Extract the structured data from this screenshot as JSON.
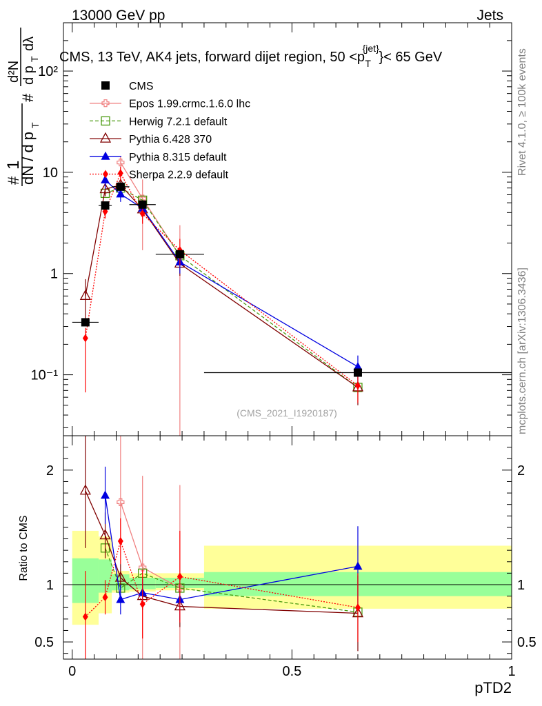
{
  "header": {
    "left": "13000 GeV pp",
    "right": "Jets",
    "title": "CMS, 13 TeV, AK4 jets, forward dijet region, 50 <p",
    "title_sup": "{jet}",
    "title_sub": "T",
    "title_end": "}< 65 GeV",
    "side_top": "Rivet 4.1.0, ≥ 100k events",
    "side_bottom": "mcplots.cern.ch [arXiv:1306.3436]",
    "watermark": "(CMS_2021_I1920187)"
  },
  "chart_data": [
    {
      "type": "scatter",
      "panel": "main",
      "yscale": "log",
      "ylim": [
        0.025,
        300
      ],
      "xlim": [
        -0.02,
        1.0
      ],
      "ylabel": "1/N dN/dp_T dλ  (#  1 / #dN / d p_T  #  d²N / d p_T dλ)",
      "ytick_labels": [
        "10⁻¹",
        "1",
        "10",
        "10²"
      ],
      "ytick_values": [
        0.1,
        1,
        10,
        100
      ],
      "xtick_labels": [
        "0",
        "0.5",
        "1"
      ],
      "xtick_values": [
        0,
        0.5,
        1
      ],
      "legend_position": "top-left",
      "series": [
        {
          "name": "CMS",
          "color": "#000000",
          "marker": "square",
          "line": "none",
          "x": [
            0.03,
            0.075,
            0.11,
            0.16,
            0.245,
            0.65
          ],
          "y": [
            0.33,
            4.7,
            7.2,
            4.8,
            1.55,
            0.105
          ],
          "xerr": [
            0.03,
            0.015,
            0.02,
            0.03,
            0.055,
            0.35
          ]
        },
        {
          "name": "Epos 1.99.crmc.1.6.0 lhc",
          "color": "#f08080",
          "marker": "cross-open",
          "line": "solid",
          "x": [
            0.11,
            0.16,
            0.245
          ],
          "y": [
            12.5,
            5.5,
            1.5
          ],
          "yerr_lo": [
            2.0,
            3.8,
            1.48
          ],
          "yerr_hi": [
            2.0,
            3.0,
            1.5
          ]
        },
        {
          "name": "Herwig 7.2.1 default",
          "color": "#4a9a10",
          "marker": "square-open",
          "line": "dashed",
          "x": [
            0.075,
            0.11,
            0.16,
            0.245,
            0.65
          ],
          "y": [
            6.2,
            7.0,
            5.3,
            1.5,
            0.075
          ]
        },
        {
          "name": "Pythia 6.428 370",
          "color": "#800000",
          "marker": "triangle-open",
          "line": "solid",
          "x": [
            0.03,
            0.075,
            0.11,
            0.16,
            0.245,
            0.65
          ],
          "y": [
            0.6,
            6.8,
            7.5,
            4.3,
            1.25,
            0.075
          ],
          "yerr": [
            0.28,
            1.0,
            1.0,
            0.6,
            0.3,
            0.025
          ]
        },
        {
          "name": "Pythia 8.315 default",
          "color": "#0000e0",
          "marker": "triangle",
          "line": "solid",
          "x": [
            0.075,
            0.11,
            0.16,
            0.245,
            0.65
          ],
          "y": [
            8.4,
            6.1,
            4.4,
            1.3,
            0.12
          ],
          "yerr": [
            1.5,
            1.0,
            0.6,
            0.3,
            0.035
          ]
        },
        {
          "name": "Sherpa 2.2.9 default",
          "color": "#ff0000",
          "marker": "diamond",
          "line": "dotted",
          "x": [
            0.03,
            0.075,
            0.11,
            0.16,
            0.245,
            0.65
          ],
          "y": [
            0.23,
            4.1,
            9.8,
            3.9,
            1.7,
            0.078
          ],
          "yerr_lo": [
            0.163,
            0.6,
            1.5,
            0.8,
            0.5,
            0.025
          ],
          "yerr_hi": [
            0.06,
            0.6,
            1.5,
            0.8,
            0.5,
            0.025
          ]
        }
      ]
    },
    {
      "type": "scatter",
      "panel": "ratio",
      "ylabel": "Ratio to CMS",
      "xlabel": "pTD2",
      "ylim": [
        0.35,
        2.3
      ],
      "xlim": [
        -0.02,
        1.0
      ],
      "ytick_labels": [
        "0.5",
        "1",
        "2"
      ],
      "ytick_values": [
        0.5,
        1,
        2
      ],
      "xtick_labels": [
        "0",
        "0.5",
        "1"
      ],
      "xtick_values": [
        0,
        0.5,
        1
      ],
      "bands": {
        "edges": [
          0.0,
          0.06,
          0.09,
          0.13,
          0.19,
          0.3,
          1.0
        ],
        "inner_lo": [
          0.84,
          0.93,
          0.95,
          0.96,
          0.97,
          0.9
        ],
        "inner_hi": [
          1.23,
          1.22,
          1.09,
          1.06,
          1.06,
          1.11
        ],
        "outer_lo": [
          0.65,
          0.75,
          0.93,
          0.94,
          0.95,
          0.79
        ],
        "outer_hi": [
          1.47,
          1.42,
          1.12,
          1.1,
          1.1,
          1.34
        ]
      },
      "series": [
        {
          "name": "Epos 1.99.crmc.1.6.0 lhc",
          "color": "#f08080",
          "marker": "cross-open",
          "line": "solid",
          "x": [
            0.11,
            0.16,
            0.245
          ],
          "y": [
            1.72,
            1.15,
            0.97
          ],
          "yerr_lo": [
            0.4,
            0.9,
            0.95
          ],
          "yerr_hi": [
            1.0,
            0.8,
            0.9
          ]
        },
        {
          "name": "Herwig 7.2.1 default",
          "color": "#4a9a10",
          "marker": "square-open",
          "line": "dashed",
          "x": [
            0.075,
            0.11,
            0.16,
            0.245,
            0.65
          ],
          "y": [
            1.32,
            0.97,
            1.1,
            0.97,
            0.76
          ]
        },
        {
          "name": "Pythia 6.428 370",
          "color": "#800000",
          "marker": "triangle-open",
          "line": "solid",
          "x": [
            0.03,
            0.075,
            0.11,
            0.16,
            0.245,
            0.65
          ],
          "y": [
            1.82,
            1.43,
            1.06,
            0.9,
            0.81,
            0.75
          ],
          "yerr": [
            0.5,
            0.2,
            0.12,
            0.12,
            0.18,
            0.33
          ]
        },
        {
          "name": "Pythia 8.315 default",
          "color": "#0000e0",
          "marker": "triangle",
          "line": "solid",
          "x": [
            0.075,
            0.11,
            0.16,
            0.245,
            0.65
          ],
          "y": [
            1.78,
            0.87,
            0.93,
            0.87,
            1.16
          ],
          "yerr": [
            0.25,
            0.13,
            0.12,
            0.18,
            0.35
          ]
        },
        {
          "name": "Sherpa 2.2.9 default",
          "color": "#ff0000",
          "marker": "diamond",
          "line": "dotted",
          "x": [
            0.03,
            0.075,
            0.11,
            0.16,
            0.245,
            0.65
          ],
          "y": [
            0.72,
            0.89,
            1.38,
            0.83,
            1.07,
            0.8
          ],
          "yerr_lo": [
            0.4,
            0.15,
            0.2,
            0.3,
            0.4,
            0.3
          ],
          "yerr_hi": [
            0.4,
            0.15,
            0.2,
            0.3,
            0.4,
            0.3
          ]
        }
      ]
    }
  ]
}
